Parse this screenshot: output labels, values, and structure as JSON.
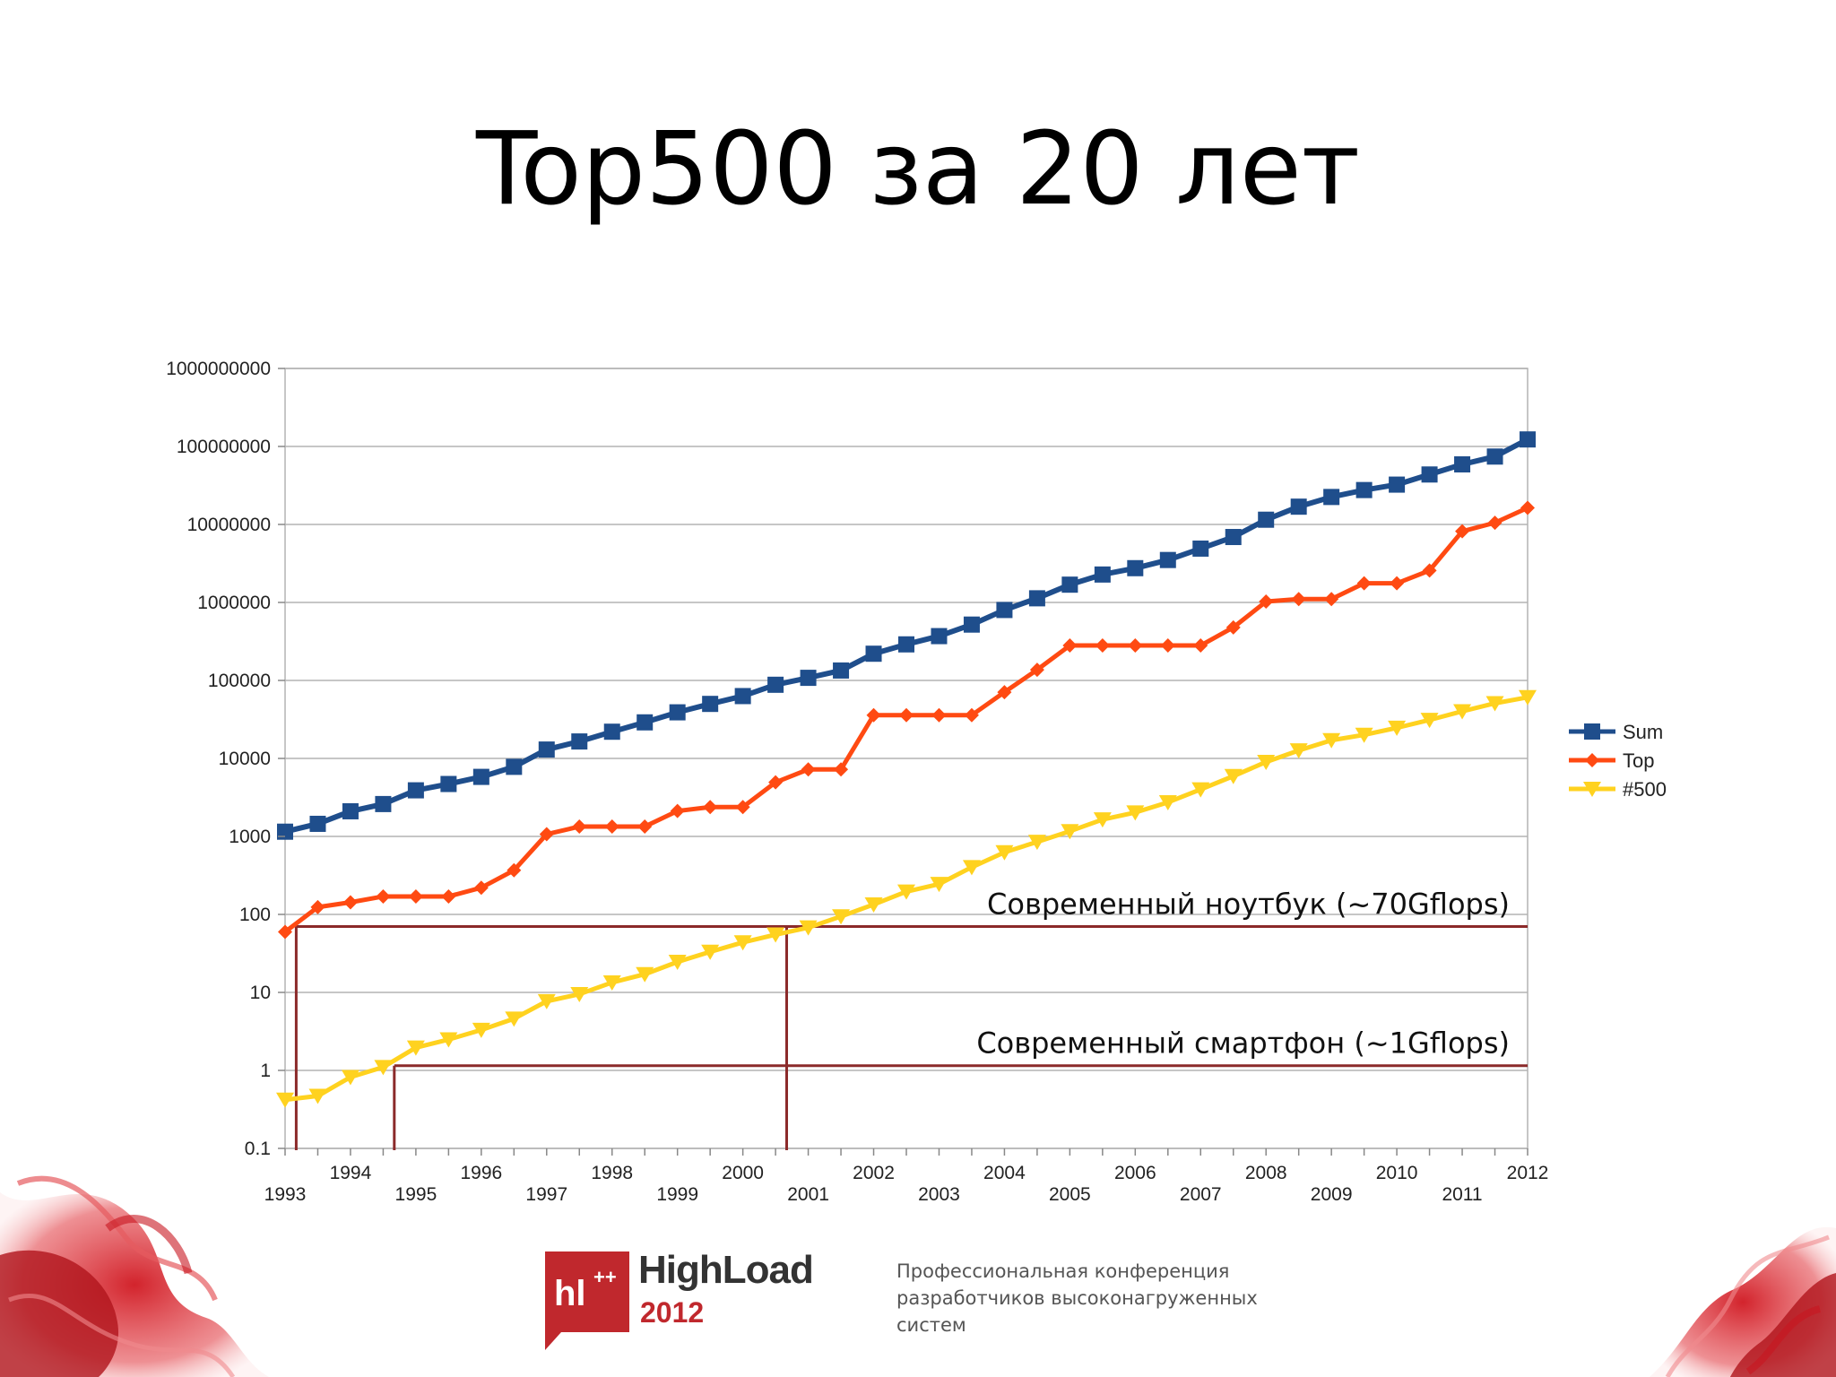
{
  "slide": {
    "title": "Top500 за 20 лет"
  },
  "footer": {
    "logo_mark": "hl",
    "logo_plus": "++",
    "logo_name": "HighLoad",
    "logo_year": "2012",
    "conference_text": "Профессиональная конференция разработчиков высоконагруженных систем"
  },
  "colors": {
    "sum": "#1f4e8c",
    "top": "#ff4a12",
    "n500": "#ffd21f",
    "annotation_line": "#8b2a2a",
    "grid": "#b3b3b3",
    "brand_red": "#c0282d"
  },
  "chart_data": {
    "type": "line",
    "title": "",
    "xlabel": "",
    "ylabel": "",
    "y_scale": "log",
    "ylim": [
      0.1,
      1000000000
    ],
    "y_ticks": [
      "0.1",
      "1",
      "10",
      "100",
      "1000",
      "10000",
      "100000",
      "1000000",
      "10000000",
      "100000000",
      "1000000000"
    ],
    "x_ticks_upper": [
      "1994",
      "1996",
      "1998",
      "2000",
      "2002",
      "2004",
      "2006",
      "2008",
      "2010",
      "2012"
    ],
    "x_ticks_lower": [
      "1993",
      "1995",
      "1997",
      "1999",
      "2001",
      "2003",
      "2005",
      "2007",
      "2009",
      "2011"
    ],
    "x": [
      1993.0,
      1993.5,
      1994.0,
      1994.5,
      1995.0,
      1995.5,
      1996.0,
      1996.5,
      1997.0,
      1997.5,
      1998.0,
      1998.5,
      1999.0,
      1999.5,
      2000.0,
      2000.5,
      2001.0,
      2001.5,
      2002.0,
      2002.5,
      2003.0,
      2003.5,
      2004.0,
      2004.5,
      2005.0,
      2005.5,
      2006.0,
      2006.5,
      2007.0,
      2007.5,
      2008.0,
      2008.5,
      2009.0,
      2009.5,
      2010.0,
      2010.5,
      2011.0,
      2011.5,
      2012.0
    ],
    "grid": true,
    "legend_position": "right",
    "series": [
      {
        "name": "Sum",
        "color": "#1f4e8c",
        "marker": "square",
        "values": [
          1150,
          1450,
          2100,
          2600,
          3900,
          4700,
          5800,
          7800,
          13000,
          16500,
          22000,
          29000,
          39000,
          50000,
          63000,
          88000,
          108000,
          134000,
          220000,
          290000,
          370000,
          520000,
          800000,
          1130000,
          1690000,
          2280000,
          2750000,
          3500000,
          4900000,
          6900000,
          11500000,
          16900000,
          22500000,
          27600000,
          32400000,
          43700000,
          58900000,
          74200000,
          123000000
        ]
      },
      {
        "name": "Top",
        "color": "#ff4a12",
        "marker": "diamond",
        "values": [
          59.7,
          124,
          143,
          170,
          170,
          170,
          220,
          368,
          1068,
          1338,
          1338,
          1338,
          2121,
          2379,
          2379,
          4938,
          7226,
          7226,
          35860,
          35860,
          35860,
          35860,
          70720,
          136800,
          280600,
          280600,
          280600,
          280600,
          280600,
          478200,
          1026000,
          1105000,
          1105000,
          1759000,
          1759000,
          2566000,
          8162000,
          10510000,
          16320000
        ]
      },
      {
        "name": "#500",
        "color": "#ffd21f",
        "marker": "triangle-down",
        "values": [
          0.42,
          0.47,
          0.82,
          1.1,
          1.96,
          2.49,
          3.3,
          4.6,
          7.7,
          9.5,
          13.4,
          17.1,
          24.6,
          33.1,
          43.8,
          55.1,
          67.8,
          94.3,
          134,
          196,
          245,
          403,
          625,
          851,
          1166,
          1646,
          2026,
          2737,
          4005,
          5929,
          9000,
          12640,
          17100,
          20050,
          24670,
          31120,
          40190,
          50940,
          60820
        ]
      }
    ],
    "annotations": [
      {
        "label": "Современный ноутбук (~70Gflops)",
        "y": 70,
        "x_from": [
          1993.17,
          2000.67
        ]
      },
      {
        "label": "Современный смартфон (~1Gflops)",
        "y": 1.15,
        "x_from": [
          1994.67
        ]
      }
    ]
  }
}
